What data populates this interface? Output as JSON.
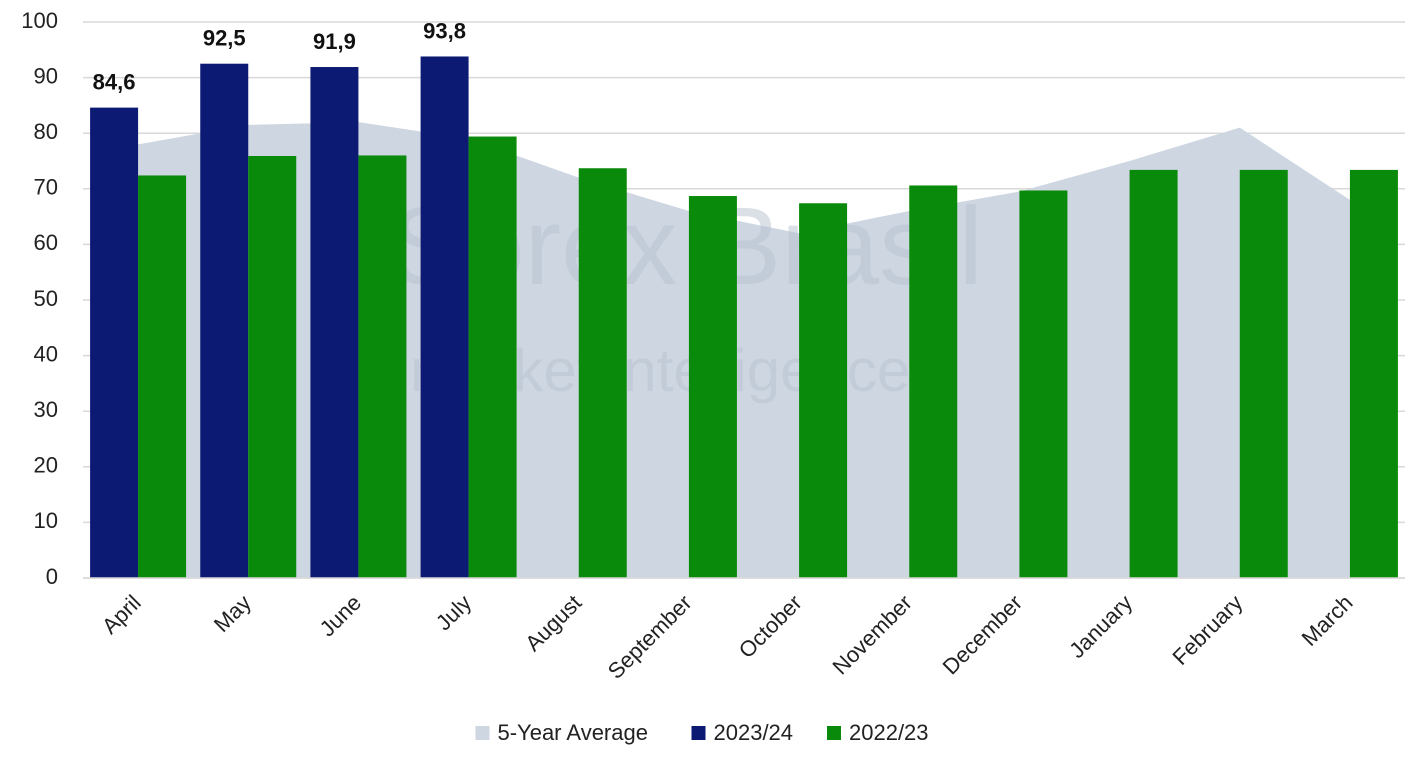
{
  "chart_data": {
    "type": "bar",
    "categories": [
      "April",
      "May",
      "June",
      "July",
      "August",
      "September",
      "October",
      "November",
      "December",
      "January",
      "February",
      "March"
    ],
    "series": [
      {
        "name": "5-Year Average",
        "color": "#cdd6e1",
        "kind": "area",
        "values": [
          78,
          81.5,
          82,
          79,
          72,
          66,
          62,
          66,
          69.5,
          75,
          81,
          68
        ]
      },
      {
        "name": "2023/24",
        "color": "#0d1a73",
        "kind": "bar",
        "values": [
          84.6,
          92.5,
          91.9,
          93.8,
          null,
          null,
          null,
          null,
          null,
          null,
          null,
          null
        ],
        "value_labels": [
          "84,6",
          "92,5",
          "91,9",
          "93,8",
          null,
          null,
          null,
          null,
          null,
          null,
          null,
          null
        ]
      },
      {
        "name": "2022/23",
        "color": "#0a8a0a",
        "kind": "bar",
        "values": [
          72.4,
          75.9,
          76.0,
          79.4,
          73.7,
          68.7,
          67.4,
          70.6,
          69.7,
          73.4,
          73.4,
          73.4
        ]
      }
    ],
    "ylim": [
      0,
      100
    ],
    "yticks": [
      0,
      10,
      20,
      30,
      40,
      50,
      60,
      70,
      80,
      90,
      100
    ],
    "grid": true,
    "legend": "bottom",
    "watermark": [
      "Sorex Brasil",
      "market intelligence"
    ]
  }
}
